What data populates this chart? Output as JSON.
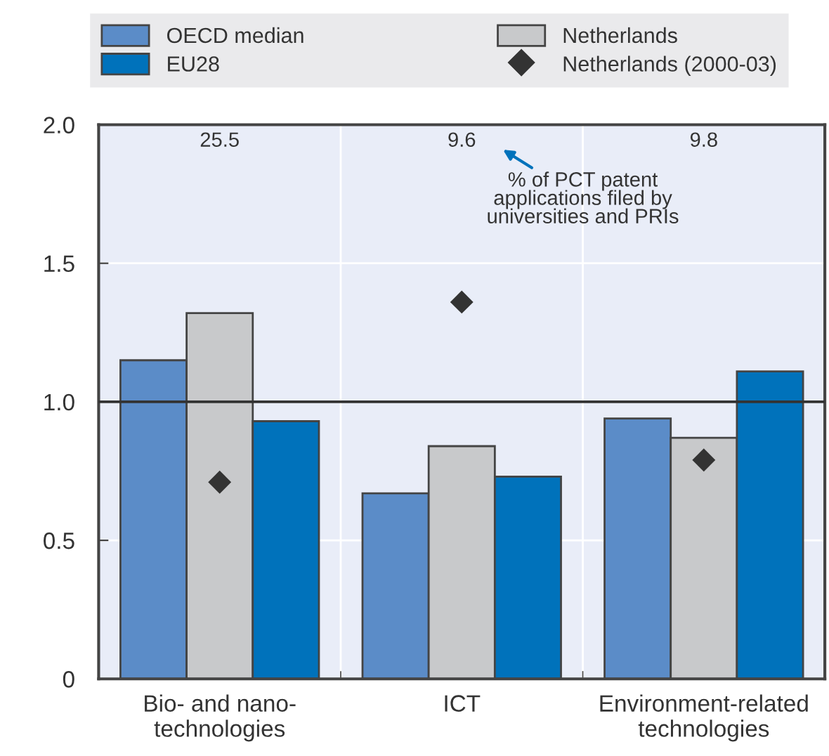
{
  "chart_data": {
    "type": "bar",
    "categories": [
      "Bio- and nano-\ntechnologies",
      "ICT",
      "Environment-related\ntechnologies"
    ],
    "series": [
      {
        "name": "OECD median",
        "color": "#5b8cc8",
        "values": [
          1.15,
          0.67,
          0.94
        ]
      },
      {
        "name": "Netherlands",
        "color": "#c8c9cb",
        "values": [
          1.32,
          0.84,
          0.87
        ]
      },
      {
        "name": "EU28",
        "color": "#0072bb",
        "values": [
          0.93,
          0.73,
          1.11
        ]
      },
      {
        "name": "Netherlands (2000-03)",
        "color": "#333333",
        "type": "scatter",
        "marker": "diamond",
        "x": [
          "Bio- and nano-\ntechnologies",
          "ICT",
          "Environment-related\ntechnologies"
        ],
        "values": [
          0.71,
          1.36,
          0.79
        ]
      }
    ],
    "ylim": [
      0,
      2.0
    ],
    "yticks": [
      {
        "value": 0,
        "label": "0"
      },
      0.5,
      {
        "value": 1,
        "label": "1.0"
      },
      1.5,
      {
        "value": 2,
        "label": "2.0"
      }
    ],
    "ref_lines": [
      {
        "axis": "y",
        "value": 1.0,
        "color": "#333333"
      }
    ],
    "annotations": [
      "25.5",
      "9.6",
      "9.8",
      "% of PCT patent\napplications filed by\nuniversities and PRIs"
    ],
    "grid": true,
    "legend": "top"
  }
}
